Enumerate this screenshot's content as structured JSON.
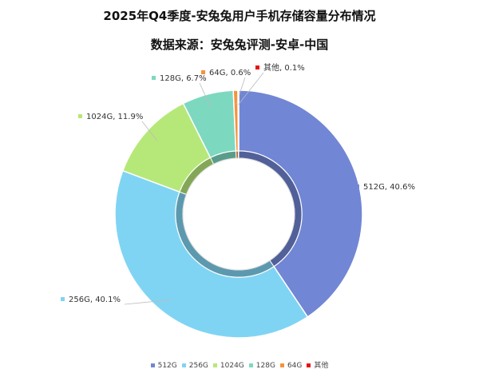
{
  "chart_data": {
    "type": "pie",
    "donut": true,
    "title": "2025年Q4季度-安兔兔用户手机存储容量分布情况",
    "subtitle": "数据来源：安兔兔评测-安卓-中国",
    "legend_position": "bottom",
    "slices": [
      {
        "label": "512G",
        "value": 40.6,
        "display": "512G, 40.6%",
        "color": "#7186d4"
      },
      {
        "label": "256G",
        "value": 40.1,
        "display": "256G, 40.1%",
        "color": "#80d4f3"
      },
      {
        "label": "1024G",
        "value": 11.9,
        "display": "1024G, 11.9%",
        "color": "#b6e879"
      },
      {
        "label": "128G",
        "value": 6.7,
        "display": "128G, 6.7%",
        "color": "#7dd8c0"
      },
      {
        "label": "64G",
        "value": 0.6,
        "display": "64G, 0.6%",
        "color": "#f7923a"
      },
      {
        "label": "其他",
        "value": 0.1,
        "display": "其他, 0.1%",
        "color": "#e81212"
      }
    ]
  }
}
